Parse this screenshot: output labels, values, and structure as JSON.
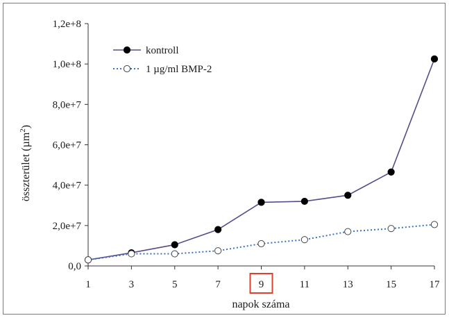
{
  "chart_data": {
    "type": "line",
    "title": "",
    "xlabel": "napok száma",
    "ylabel_main": "összterület (µm",
    "ylabel_sup": "2",
    "ylabel_close": ")",
    "x": [
      1,
      3,
      5,
      7,
      9,
      11,
      13,
      15,
      17
    ],
    "xlim": [
      1,
      17
    ],
    "ylim": [
      0,
      120000000
    ],
    "yticks": [
      0,
      20000000,
      40000000,
      60000000,
      80000000,
      100000000,
      120000000
    ],
    "ytick_labels": [
      "0,0",
      "2,0e+7",
      "4,0e+7",
      "6,0e+7",
      "8,0e+7",
      "1,0e+8",
      "1,2e+8"
    ],
    "xtick_labels": [
      "1",
      "3",
      "5",
      "7",
      "9",
      "11",
      "13",
      "15",
      "17"
    ],
    "highlighted_x_label": "9",
    "highlight_color": "#e0402a",
    "grid": false,
    "legend_position": "top-left",
    "series": [
      {
        "name": "kontroll",
        "color": "#5a4a8a",
        "marker": "filled-circle",
        "line_style": "solid",
        "values": [
          3000000,
          6500000,
          10500000,
          18000000,
          31500000,
          32000000,
          35000000,
          46500000,
          102500000
        ]
      },
      {
        "name": "1 µg/ml BMP-2",
        "color": "#3a6fc4",
        "marker": "open-circle",
        "line_style": "dotted",
        "values": [
          3000000,
          6000000,
          6000000,
          7500000,
          11000000,
          13000000,
          17000000,
          18500000,
          20500000
        ]
      }
    ]
  }
}
